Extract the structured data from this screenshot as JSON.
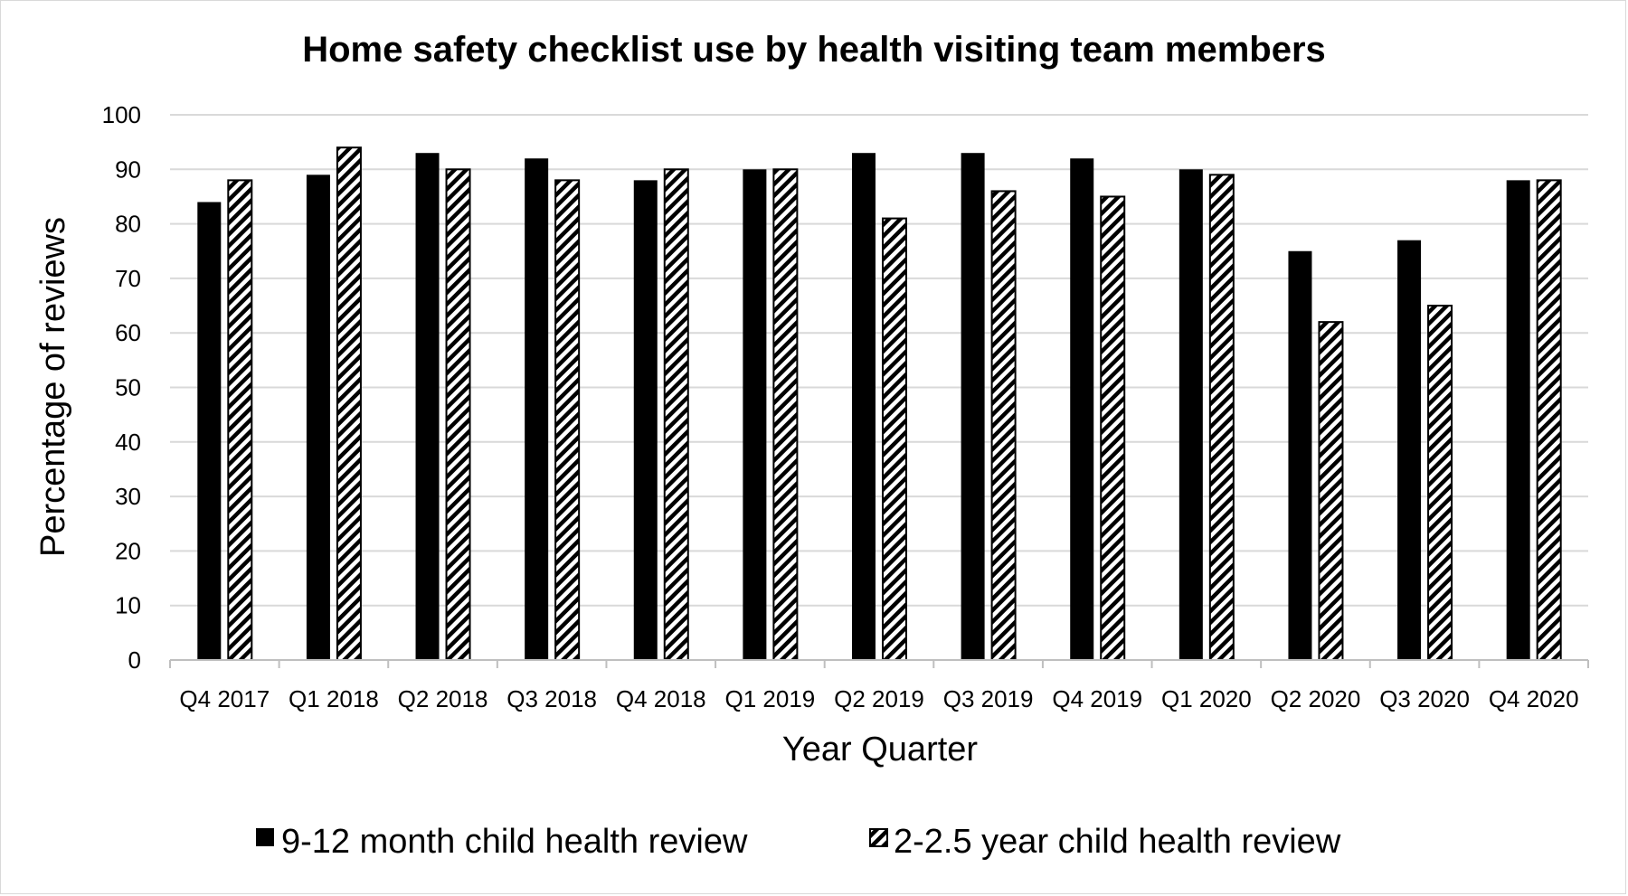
{
  "chart_data": {
    "type": "bar",
    "title": "Home safety checklist use by health visiting team members",
    "xlabel": "Year Quarter",
    "ylabel": "Percentage of reviews",
    "ylim": [
      0,
      100
    ],
    "yticks": [
      0,
      10,
      20,
      30,
      40,
      50,
      60,
      70,
      80,
      90,
      100
    ],
    "grid": true,
    "legend_position": "bottom",
    "categories": [
      "Q4 2017",
      "Q1 2018",
      "Q2 2018",
      "Q3 2018",
      "Q4 2018",
      "Q1 2019",
      "Q2 2019",
      "Q3 2019",
      "Q4 2019",
      "Q1 2020",
      "Q2 2020",
      "Q3 2020",
      "Q4 2020"
    ],
    "series": [
      {
        "name": "9-12 month child health review",
        "fill": "solid",
        "color": "#000000",
        "values": [
          84,
          89,
          93,
          92,
          88,
          90,
          93,
          93,
          92,
          90,
          75,
          77,
          88
        ]
      },
      {
        "name": "2-2.5 year child health review",
        "fill": "diagonal-hatch",
        "color": "#000000",
        "values": [
          88,
          94,
          90,
          88,
          90,
          90,
          81,
          86,
          85,
          89,
          62,
          65,
          88
        ]
      }
    ]
  },
  "colors": {
    "gridline": "#d9d9d9",
    "axis": "#bfbfbf",
    "bar": "#000000",
    "hatch_background": "#ffffff"
  }
}
